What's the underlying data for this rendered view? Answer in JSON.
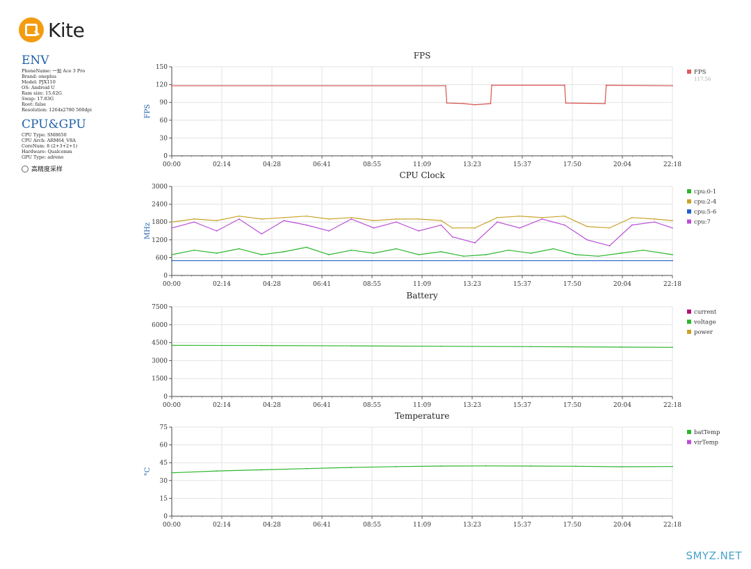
{
  "logo": {
    "text": "Kite"
  },
  "env": {
    "title": "ENV",
    "lines": [
      "PhoneName: 一加 Ace 3 Pro",
      "Brand: oneplus",
      "Model: PJX110",
      "OS: Android U",
      "Ram size: 15.62G",
      "Swap: 17.83G",
      "Root: false",
      "Resolution: 1264x2780 560dpi"
    ]
  },
  "cpu_gpu": {
    "title": "CPU&GPU",
    "lines": [
      "CPU Type: SM8650",
      "CPU Arch: ARM64_V8A",
      "CoreNum: 8 (2+3+2+1)",
      "Hardware: Qualcomm",
      "GPU Type: adreno"
    ]
  },
  "high_precision": {
    "label": "高精度采样"
  },
  "watermark": "SMYZ.NET",
  "chart_data": [
    {
      "type": "line",
      "title": "FPS",
      "ylabel": "FPS",
      "ylim": [
        0,
        150
      ],
      "yticks": [
        0,
        30,
        60,
        90,
        120,
        150
      ],
      "xticks": [
        "00:00",
        "02:14",
        "04:28",
        "06:41",
        "08:55",
        "11:09",
        "13:23",
        "15:37",
        "17:50",
        "20:04",
        "22:18"
      ],
      "grid": true,
      "legend_position": "right",
      "legend": [
        {
          "name": "FPS",
          "color": "#e05a5a",
          "value": "117.56"
        }
      ],
      "series": [
        {
          "name": "FPS",
          "color": "#d9534f",
          "x": [
            0,
            12.2,
            12.25,
            13.0,
            13.5,
            14.2,
            14.25,
            17.5,
            17.55,
            19.3,
            19.35,
            22.3
          ],
          "values": [
            118,
            118,
            89,
            88,
            86,
            88,
            119,
            119,
            89,
            88,
            119,
            118
          ]
        }
      ]
    },
    {
      "type": "line",
      "title": "CPU Clock",
      "ylabel": "MHz",
      "ylim": [
        0,
        3000
      ],
      "yticks": [
        0,
        600,
        1200,
        1800,
        2400,
        3000
      ],
      "xticks": [
        "00:00",
        "02:14",
        "04:28",
        "06:41",
        "08:55",
        "11:09",
        "13:23",
        "15:37",
        "17:50",
        "20:04",
        "22:18"
      ],
      "grid": true,
      "legend_position": "right",
      "legend": [
        {
          "name": "cpu:0-1",
          "color": "#2bb52b"
        },
        {
          "name": "cpu:2-4",
          "color": "#c9a227"
        },
        {
          "name": "cpu:5-6",
          "color": "#1f5fc8"
        },
        {
          "name": "cpu:7",
          "color": "#b94fd6"
        }
      ],
      "series": [
        {
          "name": "cpu:0-1",
          "color": "#2bb52b",
          "x": [
            0,
            1,
            2,
            3,
            4,
            5,
            6,
            7,
            8,
            9,
            10,
            11,
            12,
            13,
            14,
            15,
            16,
            17,
            18,
            19,
            20,
            21,
            22.3
          ],
          "values": [
            700,
            850,
            750,
            900,
            700,
            800,
            950,
            700,
            850,
            750,
            900,
            700,
            800,
            650,
            700,
            850,
            750,
            900,
            700,
            650,
            750,
            850,
            700
          ]
        },
        {
          "name": "cpu:2-4",
          "color": "#c9a227",
          "x": [
            0,
            1,
            2,
            3,
            4,
            5,
            6,
            7,
            8,
            9,
            10,
            11,
            12,
            12.5,
            13.5,
            14.5,
            15.5,
            16.5,
            17.5,
            18.5,
            19.5,
            20.5,
            21.5,
            22.3
          ],
          "values": [
            1800,
            1900,
            1850,
            2000,
            1900,
            1950,
            2000,
            1900,
            1950,
            1850,
            1900,
            1900,
            1850,
            1600,
            1600,
            1950,
            2000,
            1950,
            2000,
            1650,
            1600,
            1950,
            1900,
            1850
          ]
        },
        {
          "name": "cpu:5-6",
          "color": "#1f5fc8",
          "x": [
            0,
            22.3
          ],
          "values": [
            500,
            500
          ]
        },
        {
          "name": "cpu:7",
          "color": "#b94fd6",
          "x": [
            0,
            1,
            2,
            3,
            4,
            5,
            6,
            7,
            8,
            9,
            10,
            11,
            12,
            12.5,
            13.5,
            14.5,
            15.5,
            16.5,
            17.5,
            18.5,
            19.5,
            20.5,
            21.5,
            22.3
          ],
          "values": [
            1600,
            1800,
            1500,
            1900,
            1400,
            1850,
            1700,
            1500,
            1900,
            1600,
            1800,
            1500,
            1700,
            1300,
            1100,
            1800,
            1600,
            1900,
            1700,
            1200,
            1000,
            1700,
            1800,
            1600
          ]
        }
      ]
    },
    {
      "type": "line",
      "title": "Battery",
      "ylabel": "",
      "ylim": [
        0,
        7500
      ],
      "yticks": [
        0,
        1500,
        3000,
        4500,
        6000,
        7500
      ],
      "xticks": [
        "00:00",
        "02:14",
        "04:28",
        "06:41",
        "08:55",
        "11:09",
        "13:23",
        "15:37",
        "17:50",
        "20:04",
        "22:18"
      ],
      "grid": true,
      "legend_position": "right",
      "legend": [
        {
          "name": "current",
          "color": "#b0127a"
        },
        {
          "name": "voltage",
          "color": "#2bb52b"
        },
        {
          "name": "power",
          "color": "#c9a227"
        }
      ],
      "series": [
        {
          "name": "voltage",
          "color": "#2bb52b",
          "x": [
            0,
            4,
            8,
            12,
            16,
            20,
            22.3
          ],
          "values": [
            4280,
            4260,
            4230,
            4200,
            4170,
            4130,
            4110
          ]
        }
      ]
    },
    {
      "type": "line",
      "title": "Temperature",
      "ylabel": "°C",
      "ylim": [
        0,
        75
      ],
      "yticks": [
        0,
        15,
        30,
        45,
        60,
        75
      ],
      "xticks": [
        "00:00",
        "02:14",
        "04:28",
        "06:41",
        "08:55",
        "11:09",
        "13:23",
        "15:37",
        "17:50",
        "20:04",
        "22:18"
      ],
      "grid": true,
      "legend_position": "right",
      "legend": [
        {
          "name": "batTemp",
          "color": "#2bb52b"
        },
        {
          "name": "virTemp",
          "color": "#b94fd6"
        }
      ],
      "series": [
        {
          "name": "batTemp",
          "color": "#2bb52b",
          "x": [
            0,
            2,
            4,
            6,
            8,
            10,
            12,
            14,
            16,
            18,
            20,
            22.3
          ],
          "values": [
            36.5,
            38,
            39,
            40,
            41,
            41.7,
            42.2,
            42.3,
            42.2,
            42.0,
            41.6,
            41.8
          ]
        }
      ]
    }
  ]
}
